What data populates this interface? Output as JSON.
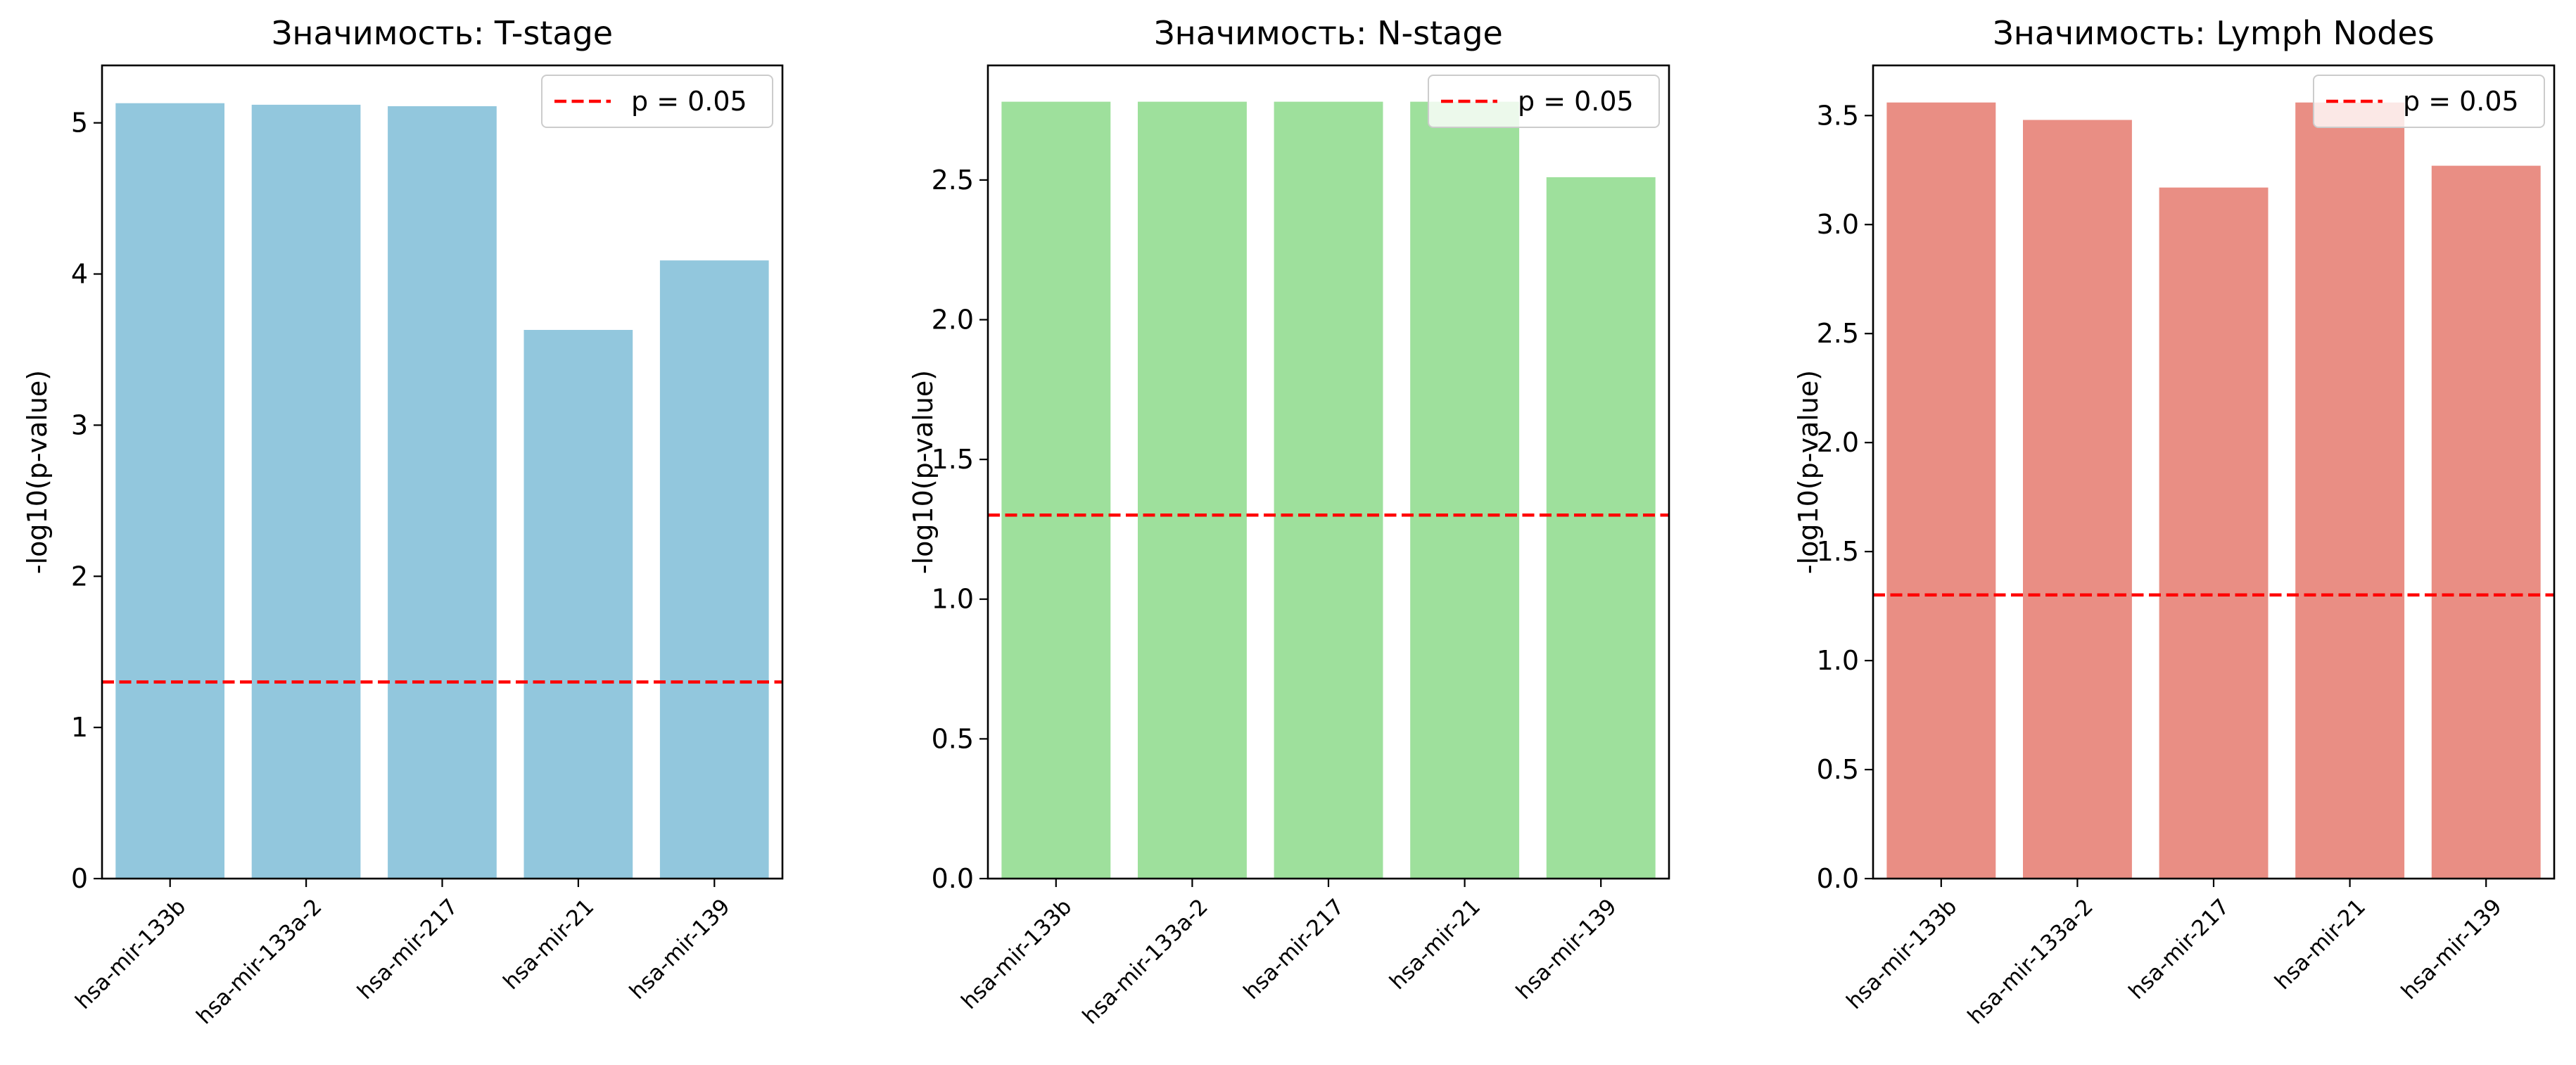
{
  "chart_data": [
    {
      "type": "bar",
      "title": "Значимость: T-stage",
      "xlabel": "",
      "ylabel": "-log10(p-value)",
      "categories": [
        "hsa-mir-133b",
        "hsa-mir-133a-2",
        "hsa-mir-217",
        "hsa-mir-21",
        "hsa-mir-139"
      ],
      "values": [
        5.13,
        5.12,
        5.11,
        3.63,
        4.09
      ],
      "ylim": [
        0,
        5.38
      ],
      "yticks": [
        0,
        1,
        2,
        3,
        4,
        5
      ],
      "ytick_labels": [
        "0",
        "1",
        "2",
        "3",
        "4",
        "5"
      ],
      "bar_color": "#92c7dd",
      "threshold": {
        "value": 1.301,
        "label": "p = 0.05",
        "color": "#ff0000"
      },
      "legend_position": "top-right",
      "grid": false
    },
    {
      "type": "bar",
      "title": "Значимость: N-stage",
      "xlabel": "",
      "ylabel": "-log10(p-value)",
      "categories": [
        "hsa-mir-133b",
        "hsa-mir-133a-2",
        "hsa-mir-217",
        "hsa-mir-21",
        "hsa-mir-139"
      ],
      "values": [
        2.78,
        2.78,
        2.78,
        2.78,
        2.51
      ],
      "ylim": [
        0,
        2.91
      ],
      "yticks": [
        0,
        0.5,
        1,
        1.5,
        2,
        2.5
      ],
      "ytick_labels": [
        "0.0",
        "0.5",
        "1.0",
        "1.5",
        "2.0",
        "2.5"
      ],
      "bar_color": "#9ee09c",
      "threshold": {
        "value": 1.301,
        "label": "p = 0.05",
        "color": "#ff0000"
      },
      "legend_position": "top-right",
      "grid": false
    },
    {
      "type": "bar",
      "title": "Значимость: Lymph Nodes",
      "xlabel": "",
      "ylabel": "-log10(p-value)",
      "categories": [
        "hsa-mir-133b",
        "hsa-mir-133a-2",
        "hsa-mir-217",
        "hsa-mir-21",
        "hsa-mir-139"
      ],
      "values": [
        3.56,
        3.48,
        3.17,
        3.56,
        3.27
      ],
      "ylim": [
        0,
        3.73
      ],
      "yticks": [
        0,
        0.5,
        1,
        1.5,
        2,
        2.5,
        3,
        3.5
      ],
      "ytick_labels": [
        "0.0",
        "0.5",
        "1.0",
        "1.5",
        "2.0",
        "2.5",
        "3.0",
        "3.5"
      ],
      "bar_color": "#e98e84",
      "threshold": {
        "value": 1.301,
        "label": "p = 0.05",
        "color": "#ff0000"
      },
      "legend_position": "top-right",
      "grid": false
    }
  ]
}
